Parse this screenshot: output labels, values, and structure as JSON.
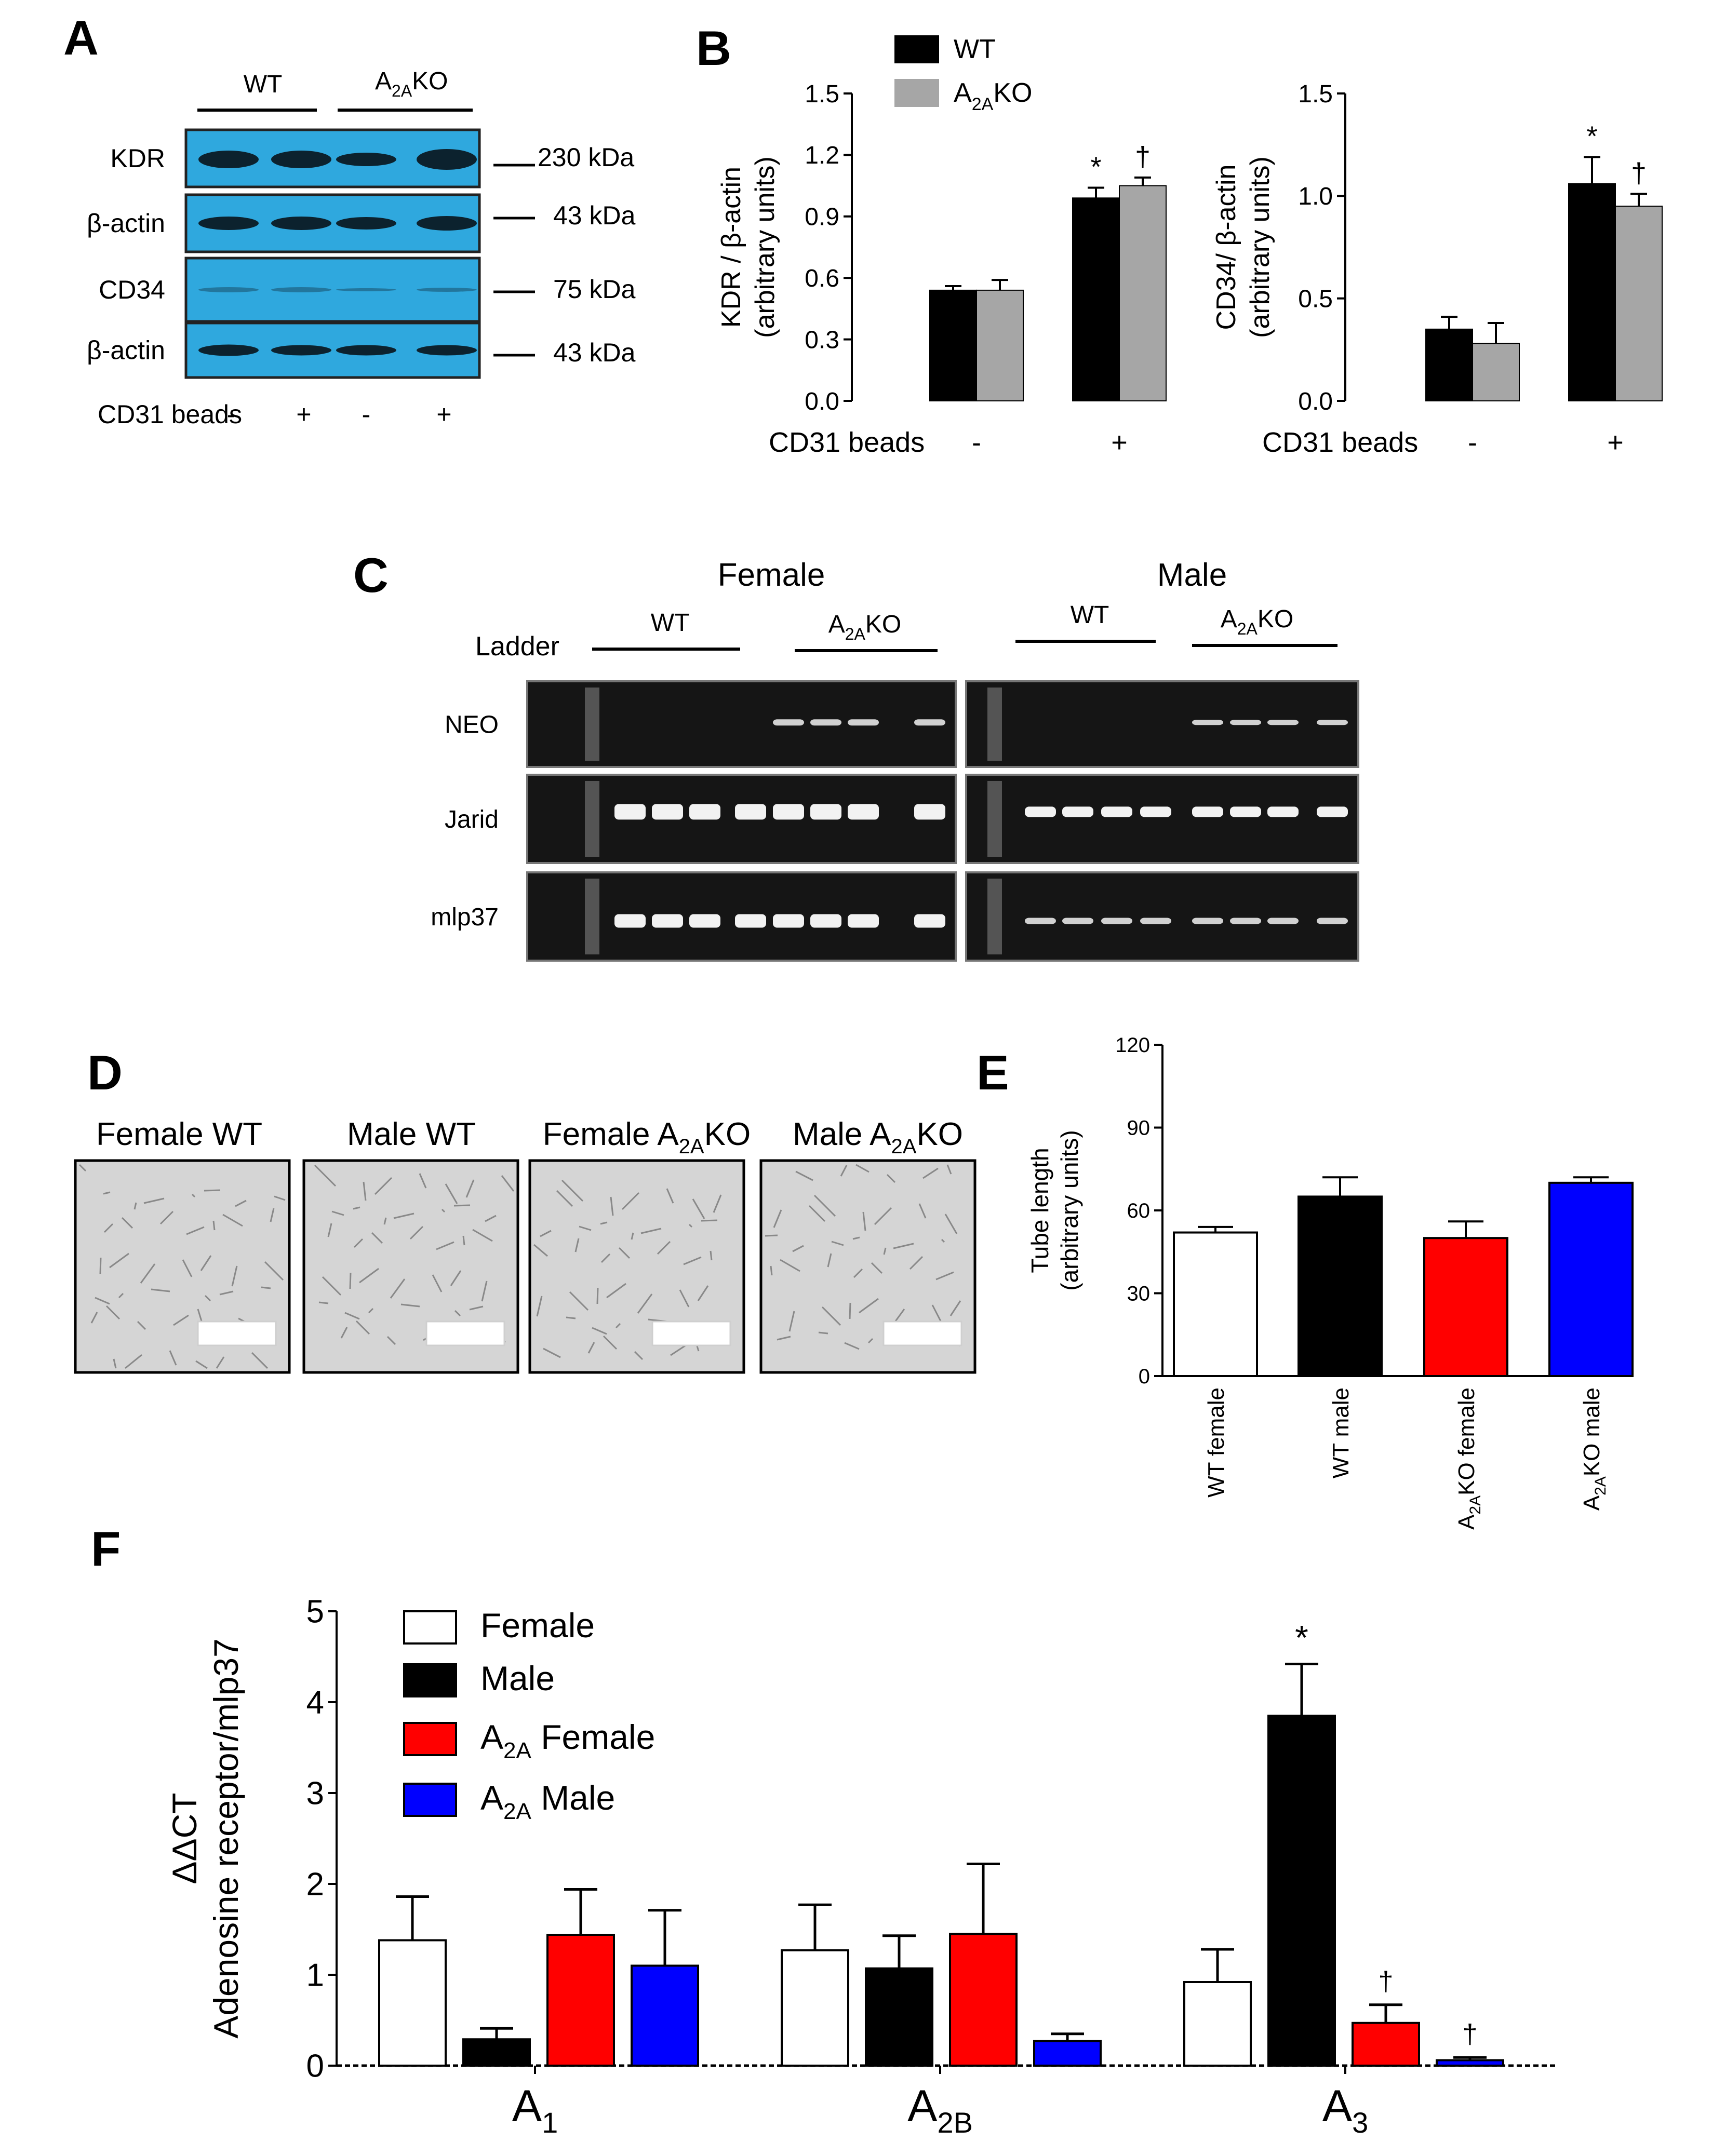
{
  "panels": {
    "A": {
      "letter": "A",
      "group_wt": "WT",
      "group_ko": "KO",
      "band_labels": [
        "KDR",
        "β-actin",
        "CD34",
        "β-actin"
      ],
      "size_labels": [
        "230 kDa",
        "43 kDa",
        "75 kDa",
        "43 kDa"
      ],
      "beads_label": "CD31 beads",
      "beads_signs": [
        "-",
        "+",
        "-",
        "+"
      ],
      "colors": {
        "membrane": "#2fa8de",
        "band": "#0b1a24"
      }
    },
    "B": {
      "letter": "B",
      "legend_wt": "WT",
      "legend_ko": "KO",
      "colors": {
        "wt": "#000000",
        "ko": "#a6a6a6"
      }
    },
    "C": {
      "letter": "C",
      "female": "Female",
      "male": "Male",
      "ladder": "Ladder",
      "wt": "WT",
      "ko": "KO",
      "row_labels": [
        "NEO",
        "Jarid",
        "mlp37"
      ],
      "colors": {
        "gel": "#151515",
        "band": "#f2f2f2"
      }
    },
    "D": {
      "letter": "D",
      "titles": [
        "Female WT",
        "Male WT",
        "Female ",
        "Male "
      ],
      "ko_suffix": "KO",
      "color_field": "#d5d5d5"
    },
    "E": {
      "letter": "E"
    },
    "F": {
      "letter": "F"
    }
  },
  "subscript": "2A",
  "chart_data": [
    {
      "id": "B-left",
      "type": "bar",
      "ylabel": "KDR / β-actin",
      "ylabel2": "(arbitrary units)",
      "xlabel": "CD31 beads",
      "categories": [
        "-",
        "+"
      ],
      "ylim": [
        0,
        1.5
      ],
      "yticks": [
        "0.0",
        "0.3",
        "0.6",
        "0.9",
        "1.2",
        "1.5"
      ],
      "series": [
        {
          "name": "WT",
          "color": "#000000",
          "values": [
            0.54,
            0.99
          ],
          "errors": [
            0.02,
            0.05
          ]
        },
        {
          "name": "A2AKO",
          "color": "#a6a6a6",
          "values": [
            0.54,
            1.05
          ],
          "errors": [
            0.05,
            0.04
          ]
        }
      ],
      "annotations": [
        "*",
        "†"
      ]
    },
    {
      "id": "B-right",
      "type": "bar",
      "ylabel": "CD34/ β-actin",
      "ylabel2": "(arbitrary units)",
      "xlabel": "CD31 beads",
      "categories": [
        "-",
        "+"
      ],
      "ylim": [
        0,
        1.5
      ],
      "yticks": [
        "0.0",
        "0.5",
        "1.0",
        "1.5"
      ],
      "series": [
        {
          "name": "WT",
          "color": "#000000",
          "values": [
            0.35,
            1.06
          ],
          "errors": [
            0.06,
            0.13
          ]
        },
        {
          "name": "A2AKO",
          "color": "#a6a6a6",
          "values": [
            0.28,
            0.95
          ],
          "errors": [
            0.1,
            0.06
          ]
        }
      ],
      "annotations": [
        "*",
        "†"
      ]
    },
    {
      "id": "E",
      "type": "bar",
      "ylabel": "Tube length",
      "ylabel2": "(arbitrary units)",
      "ylim": [
        0,
        120
      ],
      "yticks": [
        "0",
        "30",
        "60",
        "90",
        "120"
      ],
      "categories": [
        "WT female",
        "WT male",
        "KO female",
        "KO male"
      ],
      "prefix": [
        "",
        "",
        "A",
        "A"
      ],
      "values": [
        52,
        65,
        50,
        70
      ],
      "errors": [
        2,
        7,
        6,
        2
      ],
      "colors": [
        "#ffffff",
        "#000000",
        "#ff0000",
        "#0000ff"
      ]
    },
    {
      "id": "F",
      "type": "bar",
      "ylabel": "ΔΔCT",
      "ylabel2": "Adenosine receptor/mlp37",
      "ylim": [
        0,
        5
      ],
      "yticks": [
        "0",
        "1",
        "2",
        "3",
        "4",
        "5"
      ],
      "categories": [
        "A",
        "A",
        "A"
      ],
      "category_subs": [
        "1",
        "2B",
        "3"
      ],
      "series": [
        {
          "name": "Female",
          "prefix": "",
          "color": "#ffffff",
          "values": [
            1.38,
            1.27,
            0.92
          ],
          "errors": [
            0.48,
            0.5,
            0.36
          ],
          "marks": [
            "",
            "",
            ""
          ]
        },
        {
          "name": "Male",
          "prefix": "",
          "color": "#000000",
          "values": [
            0.29,
            1.07,
            3.85
          ],
          "errors": [
            0.12,
            0.36,
            0.57
          ],
          "marks": [
            "",
            "",
            "*"
          ]
        },
        {
          "name": " Female",
          "prefix": "A",
          "color": "#ff0000",
          "values": [
            1.44,
            1.45,
            0.47
          ],
          "errors": [
            0.5,
            0.77,
            0.2
          ],
          "marks": [
            "",
            "",
            "†"
          ]
        },
        {
          "name": " Male",
          "prefix": "A",
          "color": "#0000ff",
          "values": [
            1.1,
            0.27,
            0.06
          ],
          "errors": [
            0.61,
            0.08,
            0.03
          ],
          "marks": [
            "",
            "",
            "†"
          ]
        }
      ]
    }
  ]
}
